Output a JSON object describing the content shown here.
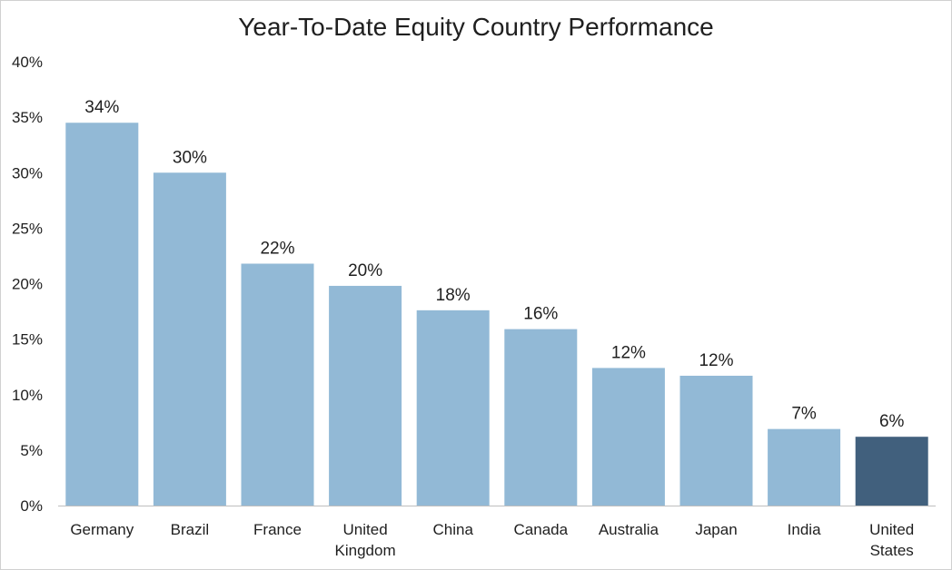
{
  "chart_data": {
    "type": "bar",
    "title": "Year-To-Date Equity Country Performance",
    "categories": [
      "Germany",
      "Brazil",
      "France",
      "United Kingdom",
      "China",
      "Canada",
      "Australia",
      "Japan",
      "India",
      "United States"
    ],
    "category_lines": [
      [
        "Germany"
      ],
      [
        "Brazil"
      ],
      [
        "France"
      ],
      [
        "United",
        "Kingdom"
      ],
      [
        "China"
      ],
      [
        "Canada"
      ],
      [
        "Australia"
      ],
      [
        "Japan"
      ],
      [
        "India"
      ],
      [
        "United",
        "States"
      ]
    ],
    "values": [
      34.5,
      30.0,
      21.8,
      19.8,
      17.6,
      15.9,
      12.4,
      11.7,
      6.9,
      6.2
    ],
    "data_labels": [
      "34%",
      "30%",
      "22%",
      "20%",
      "18%",
      "16%",
      "12%",
      "12%",
      "7%",
      "6%"
    ],
    "ylim": [
      0,
      40
    ],
    "yticks": [
      0,
      5,
      10,
      15,
      20,
      25,
      30,
      35,
      40
    ],
    "ytick_labels": [
      "0%",
      "5%",
      "10%",
      "15%",
      "20%",
      "25%",
      "30%",
      "35%",
      "40%"
    ],
    "xlabel": "",
    "ylabel": "",
    "grid": false,
    "legend": "none",
    "colors": {
      "bar": "#92b9d6",
      "highlight": "#41607d",
      "axis": "#bfbfbf",
      "text": "#1f1f1f"
    },
    "highlight_index": 9
  }
}
